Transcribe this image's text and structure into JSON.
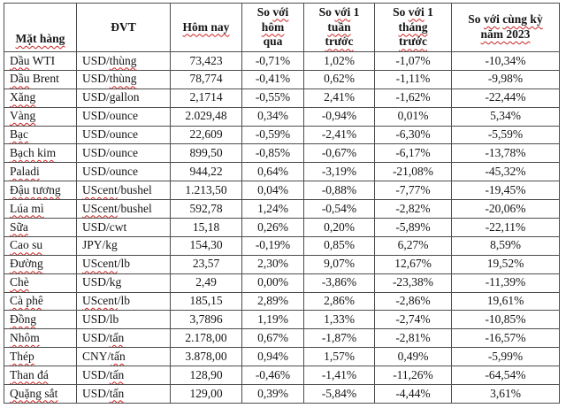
{
  "table": {
    "headers": [
      {
        "key": "commodity",
        "align": "bottom",
        "segments": [
          {
            "t": "Mặt hàng",
            "sq": true
          }
        ]
      },
      {
        "key": "unit",
        "segments": [
          {
            "t": "ĐVT"
          }
        ]
      },
      {
        "key": "today",
        "segments": [
          {
            "t": "Hôm nay",
            "sq": true
          }
        ]
      },
      {
        "key": "vs-yesterday",
        "segments": [
          {
            "t": "So "
          },
          {
            "t": "với",
            "sq": true
          },
          {
            "br": true
          },
          {
            "t": "hôm",
            "sq": true
          },
          {
            "br": true
          },
          {
            "t": "qua"
          }
        ]
      },
      {
        "key": "vs-week",
        "segments": [
          {
            "t": "So "
          },
          {
            "t": "với",
            "sq": true
          },
          {
            "t": " 1"
          },
          {
            "br": true
          },
          {
            "t": "tuần",
            "sq": true
          },
          {
            "br": true
          },
          {
            "t": "trước",
            "sq": true
          }
        ]
      },
      {
        "key": "vs-month",
        "segments": [
          {
            "t": "So "
          },
          {
            "t": "với",
            "sq": true
          },
          {
            "t": " 1"
          },
          {
            "br": true
          },
          {
            "t": "tháng",
            "sq": true
          },
          {
            "br": true
          },
          {
            "t": "trước",
            "sq": true
          }
        ]
      },
      {
        "key": "vs-year-2023",
        "segments": [
          {
            "t": "So "
          },
          {
            "t": "với",
            "sq": true
          },
          {
            "t": " "
          },
          {
            "t": "cùng kỳ",
            "sq": true
          },
          {
            "br": true
          },
          {
            "t": "năm 2023",
            "sq": true
          }
        ]
      }
    ],
    "rows": [
      {
        "name": [
          {
            "t": "Dầu",
            "sq": true
          },
          {
            "t": " WTI"
          }
        ],
        "unit": [
          {
            "t": "USD/"
          },
          {
            "t": "thùng",
            "sq": true
          }
        ],
        "values": [
          "73,423",
          "-0,71%",
          "1,02%",
          "-1,07%",
          "-10,34%"
        ]
      },
      {
        "name": [
          {
            "t": "Dầu",
            "sq": true
          },
          {
            "t": " Brent"
          }
        ],
        "unit": [
          {
            "t": "USD/"
          },
          {
            "t": "thùng",
            "sq": true
          }
        ],
        "values": [
          "78,774",
          "-0,41%",
          "0,62%",
          "-1,11%",
          "-9,98%"
        ]
      },
      {
        "name": [
          {
            "t": "Xăng",
            "sq": true
          }
        ],
        "unit": [
          {
            "t": "USD/gallon"
          }
        ],
        "values": [
          "2,1714",
          "-0,55%",
          "2,41%",
          "-1,62%",
          "-22,44%"
        ]
      },
      {
        "name": [
          {
            "t": "Vàng",
            "sq": true
          }
        ],
        "unit": [
          {
            "t": "USD/ounce"
          }
        ],
        "values": [
          "2.029,48",
          "0,34%",
          "-0,94%",
          "0,01%",
          "5,34%"
        ]
      },
      {
        "name": [
          {
            "t": "Bạc",
            "sq": true
          }
        ],
        "unit": [
          {
            "t": "USD/ounce"
          }
        ],
        "values": [
          "22,609",
          "-0,59%",
          "-2,41%",
          "-6,30%",
          "-5,59%"
        ]
      },
      {
        "name": [
          {
            "t": "Bạch kim",
            "sq": true
          }
        ],
        "unit": [
          {
            "t": "USD/ounce"
          }
        ],
        "values": [
          "899,50",
          "-0,85%",
          "-0,67%",
          "-6,17%",
          "-13,78%"
        ]
      },
      {
        "name": [
          {
            "t": "Paladi",
            "sq": true
          }
        ],
        "unit": [
          {
            "t": "USD/ounce"
          }
        ],
        "values": [
          "944,22",
          "0,64%",
          "-3,19%",
          "-21,08%",
          "-45,32%"
        ]
      },
      {
        "name": [
          {
            "t": "Đậu tương",
            "sq": true
          }
        ],
        "unit": [
          {
            "t": "UScent",
            "sq": true
          },
          {
            "t": "/bushel"
          }
        ],
        "values": [
          "1.213,50",
          "0,04%",
          "-0,88%",
          "-7,77%",
          "-19,45%"
        ]
      },
      {
        "name": [
          {
            "t": "Lúa mì",
            "sq": true
          }
        ],
        "unit": [
          {
            "t": "UScent",
            "sq": true
          },
          {
            "t": "/bushel"
          }
        ],
        "values": [
          "592,78",
          "1,24%",
          "-0,54%",
          "-2,82%",
          "-20,06%"
        ]
      },
      {
        "name": [
          {
            "t": "Sữa",
            "sq": true
          }
        ],
        "unit": [
          {
            "t": "USD/cwt"
          }
        ],
        "values": [
          "15,18",
          "0,26%",
          "0,20%",
          "-5,89%",
          "-22,11%"
        ]
      },
      {
        "name": [
          {
            "t": "Cao su",
            "sq": true
          }
        ],
        "unit": [
          {
            "t": "JPY/kg"
          }
        ],
        "values": [
          "154,30",
          "-0,19%",
          "0,85%",
          "6,27%",
          "8,59%"
        ]
      },
      {
        "name": [
          {
            "t": "Đường",
            "sq": true
          }
        ],
        "unit": [
          {
            "t": "UScent",
            "sq": true
          },
          {
            "t": "/lb"
          }
        ],
        "values": [
          "23,57",
          "2,30%",
          "9,07%",
          "12,67%",
          "19,52%"
        ]
      },
      {
        "name": [
          {
            "t": "Chè",
            "sq": true
          }
        ],
        "unit": [
          {
            "t": "USD/kg"
          }
        ],
        "values": [
          "2,49",
          "0,00%",
          "-3,86%",
          "-23,38%",
          "-11,39%"
        ]
      },
      {
        "name": [
          {
            "t": "Cà phê",
            "sq": true
          }
        ],
        "unit": [
          {
            "t": "UScent",
            "sq": true
          },
          {
            "t": "/lb"
          }
        ],
        "values": [
          "185,15",
          "2,89%",
          "2,86%",
          "-2,86%",
          "19,61%"
        ]
      },
      {
        "name": [
          {
            "t": "Đồng",
            "sq": true
          }
        ],
        "unit": [
          {
            "t": "USD/lb"
          }
        ],
        "values": [
          "3,7896",
          "1,19%",
          "1,33%",
          "-2,74%",
          "-10,85%"
        ]
      },
      {
        "name": [
          {
            "t": "Nhôm",
            "sq": true
          }
        ],
        "unit": [
          {
            "t": "USD/"
          },
          {
            "t": "tấn",
            "sq": true
          }
        ],
        "values": [
          "2.178,00",
          "0,67%",
          "-1,87%",
          "-2,81%",
          "-16,57%"
        ]
      },
      {
        "name": [
          {
            "t": "Thép",
            "sq": true
          }
        ],
        "unit": [
          {
            "t": "CNY/"
          },
          {
            "t": "tấn",
            "sq": true
          }
        ],
        "values": [
          "3.878,00",
          "0,94%",
          "1,57%",
          "0,49%",
          "-5,99%"
        ]
      },
      {
        "name": [
          {
            "t": "Than đá",
            "sq": true
          }
        ],
        "unit": [
          {
            "t": "USD/"
          },
          {
            "t": "tấn",
            "sq": true
          }
        ],
        "values": [
          "128,90",
          "-0,46%",
          "-1,41%",
          "-11,26%",
          "-64,54%"
        ]
      },
      {
        "name": [
          {
            "t": "Quặng sắt",
            "sq": true
          }
        ],
        "unit": [
          {
            "t": "USD/"
          },
          {
            "t": "tấn",
            "sq": true
          }
        ],
        "values": [
          "129,00",
          "0,39%",
          "-5,84%",
          "-4,44%",
          "3,61%"
        ]
      }
    ],
    "value_cell_names": [
      "today-value",
      "pct-vs-yesterday",
      "pct-vs-week",
      "pct-vs-month",
      "pct-vs-2023"
    ],
    "squiggle_color": "#cc2222"
  }
}
